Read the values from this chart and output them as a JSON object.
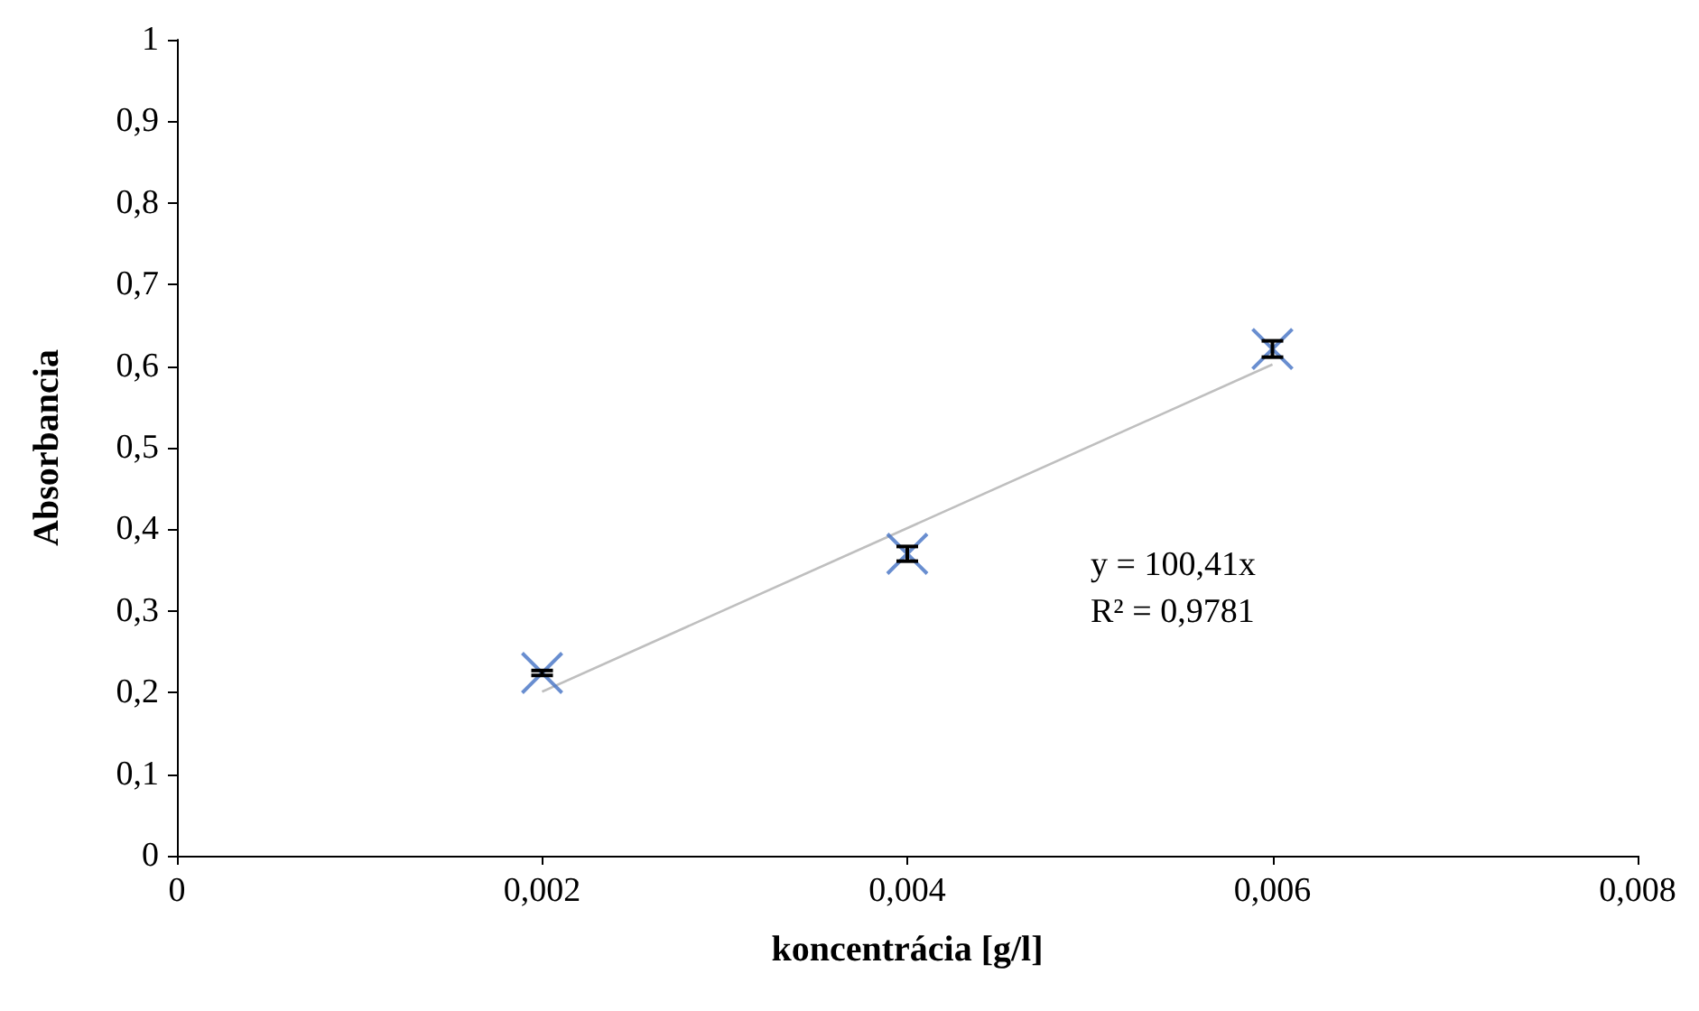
{
  "chart_data": {
    "type": "scatter",
    "xlabel": "koncentrácia [g/l]",
    "ylabel": "Absorbancia",
    "xlim": [
      0,
      0.008
    ],
    "xticks": [
      {
        "value": 0,
        "label": "0"
      },
      {
        "value": 0.002,
        "label": "0,002"
      },
      {
        "value": 0.004,
        "label": "0,004"
      },
      {
        "value": 0.006,
        "label": "0,006"
      },
      {
        "value": 0.008,
        "label": "0,008"
      }
    ],
    "ylim": [
      0,
      1
    ],
    "yticks": [
      {
        "value": 0,
        "label": "0"
      },
      {
        "value": 0.1,
        "label": "0,1"
      },
      {
        "value": 0.2,
        "label": "0,2"
      },
      {
        "value": 0.3,
        "label": "0,3"
      },
      {
        "value": 0.4,
        "label": "0,4"
      },
      {
        "value": 0.5,
        "label": "0,5"
      },
      {
        "value": 0.6,
        "label": "0,6"
      },
      {
        "value": 0.7,
        "label": "0,7"
      },
      {
        "value": 0.8,
        "label": "0,8"
      },
      {
        "value": 0.9,
        "label": "0,9"
      },
      {
        "value": 1,
        "label": "1"
      }
    ],
    "grid": false,
    "marker": "cross",
    "series": [
      {
        "color": "#4472c4",
        "x": [
          0.002,
          0.004,
          0.006
        ],
        "values": [
          0.224,
          0.37,
          0.621
        ],
        "errors": [
          0.003,
          0.009,
          0.01
        ]
      },
      {
        "type": "line",
        "color": "#bfbfbf",
        "marker": "none",
        "x": [
          0.002,
          0.006
        ],
        "values": [
          0.201,
          0.602
        ]
      }
    ],
    "annotations": [
      "y = 100,41x\nR² = 0,9781"
    ]
  }
}
